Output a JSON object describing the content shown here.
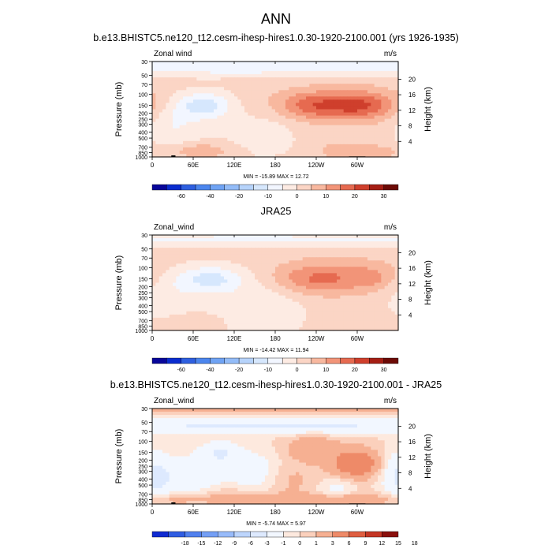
{
  "title": "ANN",
  "colors": {
    "cb_main": [
      "#08069a",
      "#0a2ccf",
      "#2e5fe0",
      "#4c86ee",
      "#6fa3f4",
      "#93bcf8",
      "#b6d3fb",
      "#d6e7fd",
      "#f2f6ff",
      "#fdebe3",
      "#fbd5c5",
      "#f8b89f",
      "#f29478",
      "#e66a50",
      "#cf3f2c",
      "#a51e14",
      "#6c0a06"
    ],
    "cb_diff": [
      "#0f2ad1",
      "#2f5de2",
      "#5080ee",
      "#749ff5",
      "#98bbfa",
      "#bdd5fc",
      "#dde9fe",
      "#f2f7ff",
      "#fde9de",
      "#fbd0bc",
      "#f6b092",
      "#ee8a68",
      "#df5e40",
      "#c43624",
      "#8a0f0c"
    ]
  },
  "chart_data": [
    {
      "type": "heatmap",
      "title": "b.e13.BHISTC5.ne120_t12.cesm-ihesp-hires1.0.30-1920-2100.001 (yrs 1926-1935)",
      "left_label": "Zonal wind",
      "units": "m/s",
      "ylabel": "Pressure (mb)",
      "ylabel_right": "Height (km)",
      "x_ticks": [
        "0",
        "60E",
        "120E",
        "180",
        "120W",
        "60W"
      ],
      "x_tick_values": [
        0,
        60,
        120,
        180,
        240,
        300
      ],
      "xlim": [
        0,
        360
      ],
      "y_ticks": [
        "30",
        "50",
        "70",
        "100",
        "150",
        "200",
        "250",
        "300",
        "400",
        "500",
        "700",
        "850",
        "1000"
      ],
      "y_tick_values": [
        30,
        50,
        70,
        100,
        150,
        200,
        250,
        300,
        400,
        500,
        700,
        850,
        1000
      ],
      "ylim": [
        1000,
        30
      ],
      "y_scale": "log",
      "height_ticks": [
        "4",
        "8",
        "12",
        "16",
        "20"
      ],
      "height_values": [
        4,
        8,
        12,
        16,
        20
      ],
      "stats": "MIN = -15.89  MAX =  12.72",
      "colorbar_levels": [
        -70,
        -60,
        -50,
        -40,
        -30,
        -20,
        -15,
        -10,
        -5,
        0,
        5,
        10,
        15,
        20,
        25,
        30
      ],
      "colorbar_labels": [
        "-60",
        "-40",
        "-20",
        "-10",
        "0",
        "10",
        "20",
        "30"
      ],
      "colorbar_label_values": [
        -60,
        -40,
        -20,
        -10,
        0,
        10,
        20,
        30
      ],
      "base": 2,
      "features": [
        {
          "lon": 75,
          "p": 150,
          "sx": 28,
          "sy": 0.35,
          "v": -15
        },
        {
          "lon": 75,
          "p": 400,
          "sx": 70,
          "sy": 0.9,
          "v": -2
        },
        {
          "lon": 240,
          "p": 150,
          "sx": 38,
          "sy": 0.35,
          "v": 13
        },
        {
          "lon": 310,
          "p": 150,
          "sx": 32,
          "sy": 0.35,
          "v": 13
        },
        {
          "lon": 275,
          "p": 150,
          "sx": 90,
          "sy": 0.55,
          "v": 5
        },
        {
          "lon": 170,
          "p": 380,
          "sx": 35,
          "sy": 0.7,
          "v": -4
        },
        {
          "lon": 30,
          "p": 300,
          "sx": 25,
          "sy": 0.6,
          "v": -6
        },
        {
          "lon": 70,
          "p": 800,
          "sx": 30,
          "sy": 0.2,
          "v": 9
        },
        {
          "lon": 280,
          "p": 800,
          "sx": 25,
          "sy": 0.2,
          "v": 7
        },
        {
          "lon": 330,
          "p": 850,
          "sx": 25,
          "sy": 0.2,
          "v": 6
        },
        {
          "lon": 180,
          "p": 35,
          "sx": 400,
          "sy": 0.25,
          "v": -12
        }
      ],
      "orography": [
        {
          "lon0": 12,
          "lon1": 42,
          "p": 985
        },
        {
          "lon0": 28,
          "lon1": 34,
          "p": 945
        },
        {
          "lon0": 288,
          "lon1": 312,
          "p": 980
        }
      ]
    },
    {
      "type": "heatmap",
      "title": "JRA25",
      "left_label": "Zonal_wind",
      "units": "m/s",
      "ylabel": "Pressure (mb)",
      "ylabel_right": "Height (km)",
      "x_ticks": [
        "0",
        "60E",
        "120E",
        "180",
        "120W",
        "60W"
      ],
      "x_tick_values": [
        0,
        60,
        120,
        180,
        240,
        300
      ],
      "xlim": [
        0,
        360
      ],
      "y_ticks": [
        "30",
        "50",
        "70",
        "100",
        "150",
        "200",
        "250",
        "300",
        "400",
        "500",
        "700",
        "850",
        "1000"
      ],
      "y_tick_values": [
        30,
        50,
        70,
        100,
        150,
        200,
        250,
        300,
        400,
        500,
        700,
        850,
        1000
      ],
      "ylim": [
        1000,
        30
      ],
      "y_scale": "log",
      "height_ticks": [
        "4",
        "8",
        "12",
        "16",
        "20"
      ],
      "height_values": [
        4,
        8,
        12,
        16,
        20
      ],
      "stats": "MIN = -14.42  MAX = 11.94",
      "colorbar_levels": [
        -70,
        -60,
        -50,
        -40,
        -30,
        -20,
        -15,
        -10,
        -5,
        0,
        5,
        10,
        15,
        20,
        25,
        30
      ],
      "colorbar_labels": [
        "-60",
        "-40",
        "-20",
        "-10",
        "0",
        "10",
        "20",
        "30"
      ],
      "colorbar_label_values": [
        -60,
        -40,
        -20,
        -10,
        0,
        10,
        20,
        30
      ],
      "base": 2,
      "features": [
        {
          "lon": 85,
          "p": 150,
          "sx": 35,
          "sy": 0.35,
          "v": -13
        },
        {
          "lon": 80,
          "p": 350,
          "sx": 70,
          "sy": 0.9,
          "v": -3
        },
        {
          "lon": 245,
          "p": 150,
          "sx": 45,
          "sy": 0.38,
          "v": 12
        },
        {
          "lon": 325,
          "p": 140,
          "sx": 25,
          "sy": 0.35,
          "v": 6
        },
        {
          "lon": 270,
          "p": 130,
          "sx": 100,
          "sy": 0.6,
          "v": 3
        },
        {
          "lon": 170,
          "p": 450,
          "sx": 40,
          "sy": 0.8,
          "v": -5
        },
        {
          "lon": 20,
          "p": 250,
          "sx": 25,
          "sy": 0.6,
          "v": -4
        },
        {
          "lon": 60,
          "p": 750,
          "sx": 30,
          "sy": 0.25,
          "v": 4
        },
        {
          "lon": 180,
          "p": 35,
          "sx": 400,
          "sy": 0.2,
          "v": -8
        }
      ],
      "orography": []
    },
    {
      "type": "heatmap",
      "title": "b.e13.BHISTC5.ne120_t12.cesm-ihesp-hires1.0.30-1920-2100.001 - JRA25",
      "left_label": "Zonal_wind",
      "units": "m/s",
      "ylabel": "Pressure (mb)",
      "ylabel_right": "Height (km)",
      "x_ticks": [
        "0",
        "60E",
        "120E",
        "180",
        "120W",
        "60W"
      ],
      "x_tick_values": [
        0,
        60,
        120,
        180,
        240,
        300
      ],
      "xlim": [
        0,
        360
      ],
      "y_ticks": [
        "30",
        "50",
        "70",
        "100",
        "150",
        "200",
        "250",
        "300",
        "400",
        "500",
        "700",
        "850",
        "1000"
      ],
      "y_tick_values": [
        30,
        50,
        70,
        100,
        150,
        200,
        250,
        300,
        400,
        500,
        700,
        850,
        1000
      ],
      "ylim": [
        1000,
        30
      ],
      "y_scale": "log",
      "height_ticks": [
        "4",
        "8",
        "12",
        "16",
        "20"
      ],
      "height_values": [
        4,
        8,
        12,
        16,
        20
      ],
      "stats": "MIN = -5.74  MAX =  5.97",
      "colorbar_levels": [
        -21,
        -18,
        -15,
        -12,
        -9,
        -6,
        -3,
        -1,
        0,
        1,
        3,
        6,
        9,
        12,
        15,
        18,
        21
      ],
      "colorbar_labels": [
        "-18",
        "-15",
        "-12",
        "-9",
        "-6",
        "-3",
        "-1",
        "0",
        "1",
        "3",
        "6",
        "9",
        "12",
        "15",
        "18"
      ],
      "colorbar_label_values": [
        -18,
        -15,
        -12,
        -9,
        -6,
        -3,
        -1,
        0,
        1,
        3,
        6,
        9,
        12,
        15,
        18
      ],
      "base": 0.3,
      "features": [
        {
          "lon": 180,
          "p": 55,
          "sx": 400,
          "sy": 0.22,
          "v": -3.5
        },
        {
          "lon": 300,
          "p": 230,
          "sx": 25,
          "sy": 0.35,
          "v": 5.5
        },
        {
          "lon": 235,
          "p": 130,
          "sx": 25,
          "sy": 0.3,
          "v": 2.5
        },
        {
          "lon": 60,
          "p": 350,
          "sx": 30,
          "sy": 0.6,
          "v": -2.5
        },
        {
          "lon": 150,
          "p": 300,
          "sx": 30,
          "sy": 0.6,
          "v": -2.2
        },
        {
          "lon": 100,
          "p": 150,
          "sx": 20,
          "sy": 0.3,
          "v": -3
        },
        {
          "lon": 10,
          "p": 400,
          "sx": 15,
          "sy": 0.6,
          "v": -2.5
        },
        {
          "lon": 350,
          "p": 300,
          "sx": 20,
          "sy": 0.6,
          "v": -2
        },
        {
          "lon": 180,
          "p": 850,
          "sx": 80,
          "sy": 0.15,
          "v": 1.8
        },
        {
          "lon": 300,
          "p": 850,
          "sx": 40,
          "sy": 0.15,
          "v": 1.8
        },
        {
          "lon": 30,
          "p": 850,
          "sx": 25,
          "sy": 0.15,
          "v": 1.5
        },
        {
          "lon": 110,
          "p": 750,
          "sx": 30,
          "sy": 0.2,
          "v": 1.3
        },
        {
          "lon": 200,
          "p": 420,
          "sx": 25,
          "sy": 0.5,
          "v": 1.2
        },
        {
          "lon": 270,
          "p": 560,
          "sx": 20,
          "sy": 0.3,
          "v": -1.8
        },
        {
          "lon": 180,
          "p": 30,
          "sx": 400,
          "sy": 0.1,
          "v": 2.5
        }
      ],
      "orography": [
        {
          "lon0": 12,
          "lon1": 42,
          "p": 985
        },
        {
          "lon0": 28,
          "lon1": 34,
          "p": 945
        },
        {
          "lon0": 288,
          "lon1": 312,
          "p": 980
        }
      ]
    }
  ]
}
